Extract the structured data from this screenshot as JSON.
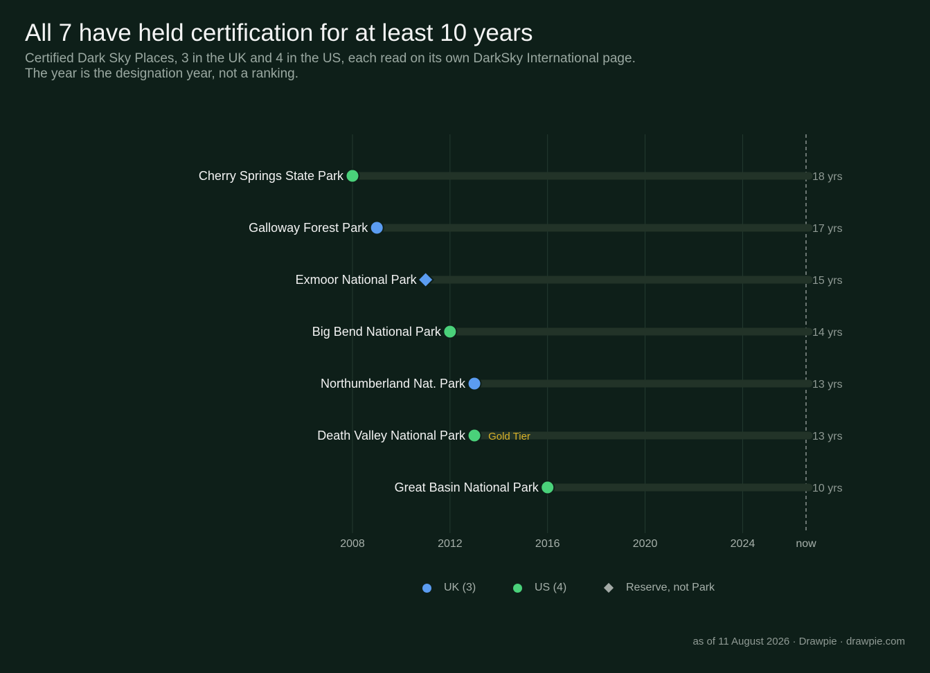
{
  "title": "All 7 have held certification for at least 10 years",
  "subtitle_line1": "Certified Dark Sky Places, 3 in the UK and 4 in the US, each read on its own DarkSky International page.",
  "subtitle_line2": "The year is the designation year, not a ranking.",
  "footer": "as of 11 August 2026  ·  Drawpie · drawpie.com",
  "colors": {
    "background": "#0e1f19",
    "uk": "#5b9cf1",
    "us": "#4ad17a",
    "reserve": "#a3aaa6",
    "track": "#223328",
    "grid": "#243a30",
    "gold": "#d9b229",
    "tick": "#a6b0aa",
    "end_label": "#8f9a94"
  },
  "legend": [
    {
      "label": "UK (3)",
      "color": "#5b9cf1",
      "shape": "circle"
    },
    {
      "label": "US (4)",
      "color": "#4ad17a",
      "shape": "circle"
    },
    {
      "label": "Reserve, not Park",
      "color": "#a3aaa6",
      "shape": "diamond"
    }
  ],
  "chart_data": {
    "type": "dot-range",
    "x_axis": {
      "min": 2008,
      "max": 2026.6,
      "ticks": [
        2008,
        2012,
        2016,
        2020,
        2024
      ],
      "now_value": 2026.6,
      "now_label": "now"
    },
    "grid": true,
    "legend_placement": "bottom",
    "rows": [
      {
        "name": "Cherry Springs State Park",
        "year": 2008,
        "country": "US",
        "shape": "circle",
        "years_label": "18 yrs",
        "note": ""
      },
      {
        "name": "Galloway Forest Park",
        "year": 2009,
        "country": "UK",
        "shape": "circle",
        "years_label": "17 yrs",
        "note": ""
      },
      {
        "name": "Exmoor National Park",
        "year": 2011,
        "country": "UK",
        "shape": "diamond",
        "years_label": "15 yrs",
        "note": ""
      },
      {
        "name": "Big Bend National Park",
        "year": 2012,
        "country": "US",
        "shape": "circle",
        "years_label": "14 yrs",
        "note": ""
      },
      {
        "name": "Northumberland Nat. Park",
        "year": 2013,
        "country": "UK",
        "shape": "circle",
        "years_label": "13 yrs",
        "note": ""
      },
      {
        "name": "Death Valley National Park",
        "year": 2013,
        "country": "US",
        "shape": "circle",
        "years_label": "13 yrs",
        "note": "Gold Tier"
      },
      {
        "name": "Great Basin National Park",
        "year": 2016,
        "country": "US",
        "shape": "circle",
        "years_label": "10 yrs",
        "note": ""
      }
    ]
  }
}
